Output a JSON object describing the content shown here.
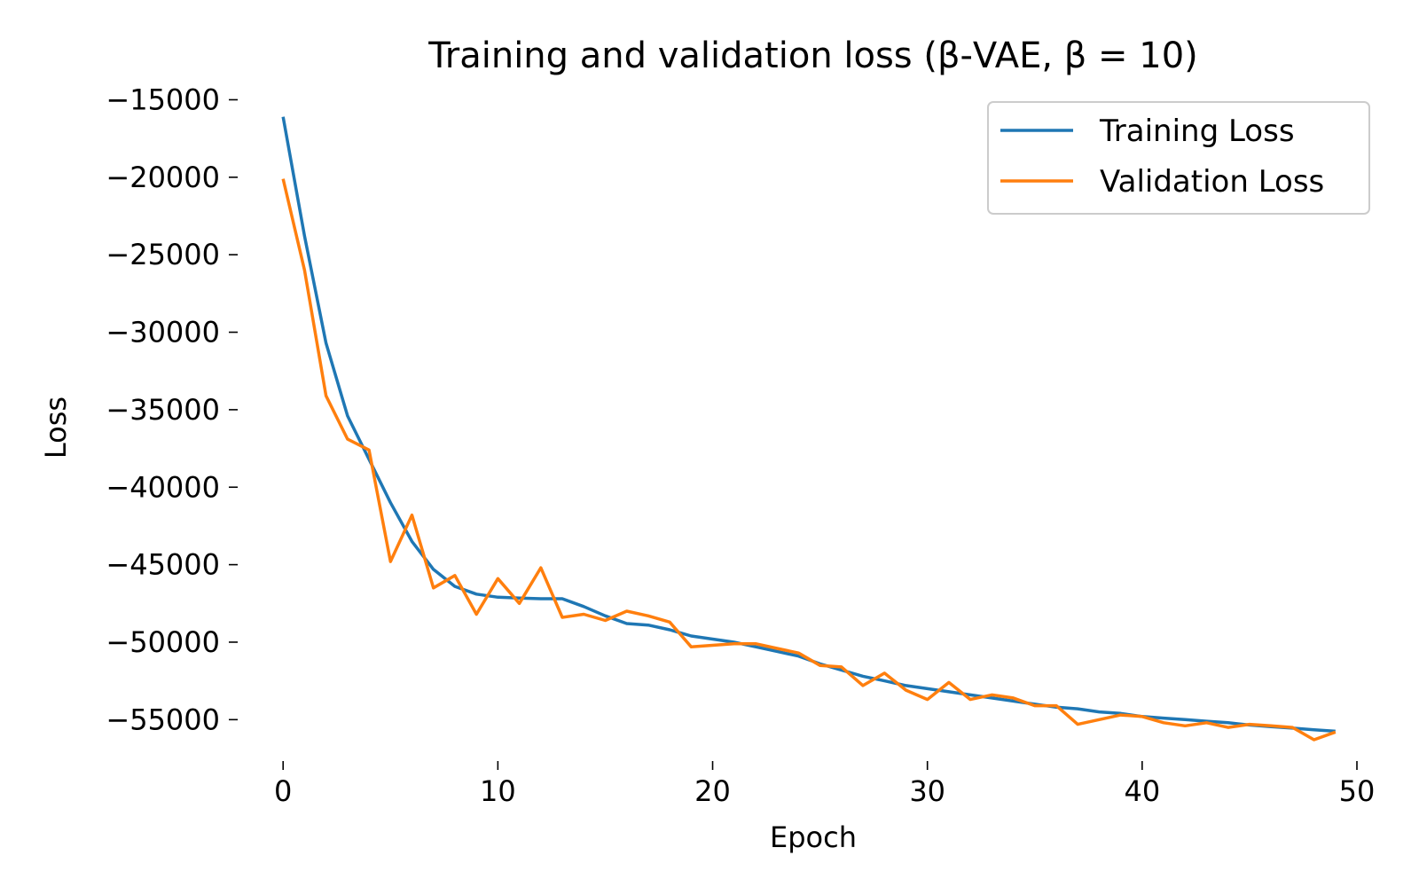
{
  "chart_data": {
    "type": "line",
    "title": "Training and validation loss (β-VAE, β = 10)",
    "xlabel": "Epoch",
    "ylabel": "Loss",
    "xlim": [
      -1,
      50
    ],
    "ylim": [
      -57500,
      -14000
    ],
    "xticks": [
      0,
      10,
      20,
      30,
      40,
      50
    ],
    "xtick_labels": [
      "0",
      "10",
      "20",
      "30",
      "40",
      "50"
    ],
    "yticks": [
      -15000,
      -20000,
      -25000,
      -30000,
      -35000,
      -40000,
      -45000,
      -50000,
      -55000
    ],
    "ytick_labels": [
      "−15000",
      "−20000",
      "−25000",
      "−30000",
      "−35000",
      "−40000",
      "−45000",
      "−50000",
      "−55000"
    ],
    "grid": false,
    "legend": "top-right",
    "x": [
      0,
      1,
      2,
      3,
      4,
      5,
      6,
      7,
      8,
      9,
      10,
      11,
      12,
      13,
      14,
      15,
      16,
      17,
      18,
      19,
      20,
      21,
      22,
      23,
      24,
      25,
      26,
      27,
      28,
      29,
      30,
      31,
      32,
      33,
      34,
      35,
      36,
      37,
      38,
      39,
      40,
      41,
      42,
      43,
      44,
      45,
      46,
      47,
      48,
      49
    ],
    "series": [
      {
        "name": "Training Loss",
        "color": "#1f77b4",
        "values": [
          -16100,
          -23800,
          -30700,
          -35400,
          -38200,
          -41000,
          -43500,
          -45300,
          -46400,
          -46900,
          -47100,
          -47150,
          -47200,
          -47200,
          -47700,
          -48300,
          -48800,
          -48900,
          -49200,
          -49600,
          -49800,
          -50000,
          -50300,
          -50600,
          -50900,
          -51400,
          -51800,
          -52200,
          -52500,
          -52800,
          -53000,
          -53200,
          -53400,
          -53600,
          -53800,
          -54000,
          -54200,
          -54300,
          -54500,
          -54600,
          -54800,
          -54900,
          -55000,
          -55100,
          -55200,
          -55350,
          -55450,
          -55550,
          -55650,
          -55750
        ]
      },
      {
        "name": "Validation Loss",
        "color": "#ff7f0e",
        "values": [
          -20100,
          -26000,
          -34100,
          -36900,
          -37600,
          -44800,
          -41800,
          -46500,
          -45700,
          -48200,
          -45900,
          -47500,
          -45200,
          -48400,
          -48200,
          -48600,
          -48000,
          -48300,
          -48700,
          -50300,
          -50200,
          -50100,
          -50100,
          -50400,
          -50700,
          -51500,
          -51600,
          -52800,
          -52000,
          -53100,
          -53700,
          -52600,
          -53700,
          -53400,
          -53600,
          -54100,
          -54100,
          -55300,
          -55000,
          -54700,
          -54800,
          -55200,
          -55400,
          -55200,
          -55500,
          -55300,
          -55400,
          -55500,
          -56300,
          -55800
        ]
      }
    ]
  }
}
